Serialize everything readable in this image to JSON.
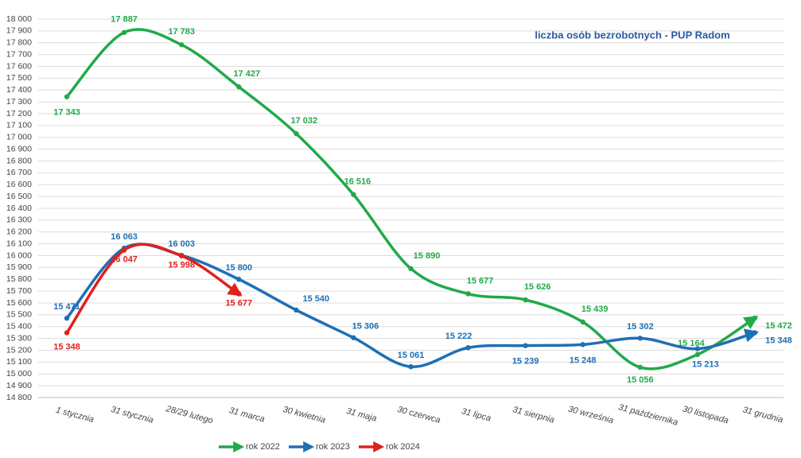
{
  "chart_data": {
    "type": "line",
    "title": "liczba osób bezrobotnych - PUP Radom",
    "categories": [
      "1 stycznia",
      "31 stycznia",
      "28/29 lutego",
      "31 marca",
      "30 kwietnia",
      "31 maja",
      "30 czerwca",
      "31 lipca",
      "31 sierpnia",
      "30 września",
      "31 października",
      "30 listopada",
      "31 grudnia"
    ],
    "series": [
      {
        "name": "rok 2022",
        "color": "#22a94b",
        "values": [
          17343,
          17887,
          17783,
          17427,
          17032,
          16516,
          15890,
          15677,
          15626,
          15439,
          15056,
          15164,
          15472
        ],
        "value_labels": [
          "17 343",
          "17 887",
          "17 783",
          "17 427",
          "17 032",
          "16 516",
          "15 890",
          "15 677",
          "15 626",
          "15 439",
          "15 056",
          "15 164",
          "15 472"
        ]
      },
      {
        "name": "rok 2023",
        "color": "#1f6fb5",
        "values": [
          15471,
          16063,
          16003,
          15800,
          15540,
          15306,
          15061,
          15222,
          15239,
          15248,
          15302,
          15213,
          15348
        ],
        "value_labels": [
          "15 471",
          "16 063",
          "16 003",
          "15 800",
          "15 540",
          "15 306",
          "15 061",
          "15 222",
          "15 239",
          "15 248",
          "15 302",
          "15 213",
          "15 348"
        ]
      },
      {
        "name": "rok 2024",
        "color": "#e0201b",
        "values": [
          15348,
          16047,
          15998,
          15677,
          null,
          null,
          null,
          null,
          null,
          null,
          null,
          null,
          null
        ],
        "value_labels": [
          "15 348",
          "16 047",
          "15 998",
          "15 677",
          null,
          null,
          null,
          null,
          null,
          null,
          null,
          null,
          null
        ]
      }
    ],
    "ylim": [
      14800,
      18000
    ],
    "yticks": [
      {
        "value": 14800,
        "label": "14 800"
      },
      {
        "value": 14900,
        "label": "14 900"
      },
      {
        "value": 15000,
        "label": "15 000"
      },
      {
        "value": 15100,
        "label": "15 100"
      },
      {
        "value": 15200,
        "label": "15 200"
      },
      {
        "value": 15300,
        "label": "15 300"
      },
      {
        "value": 15400,
        "label": "15 400"
      },
      {
        "value": 15500,
        "label": "15 500"
      },
      {
        "value": 15600,
        "label": "15 600"
      },
      {
        "value": 15700,
        "label": "15 700"
      },
      {
        "value": 15800,
        "label": "15 800"
      },
      {
        "value": 15900,
        "label": "15 900"
      },
      {
        "value": 16000,
        "label": "16 000"
      },
      {
        "value": 16100,
        "label": "16 100"
      },
      {
        "value": 16200,
        "label": "16 200"
      },
      {
        "value": 16300,
        "label": "16 300"
      },
      {
        "value": 16400,
        "label": "16 400"
      },
      {
        "value": 16500,
        "label": "16 500"
      },
      {
        "value": 16600,
        "label": "16 600"
      },
      {
        "value": 16700,
        "label": "16 700"
      },
      {
        "value": 16800,
        "label": "16 800"
      },
      {
        "value": 16900,
        "label": "16 900"
      },
      {
        "value": 17000,
        "label": "17 000"
      },
      {
        "value": 17100,
        "label": "17 100"
      },
      {
        "value": 17200,
        "label": "17 200"
      },
      {
        "value": 17300,
        "label": "17 300"
      },
      {
        "value": 17400,
        "label": "17 400"
      },
      {
        "value": 17500,
        "label": "17 500"
      },
      {
        "value": 17600,
        "label": "17 600"
      },
      {
        "value": 17700,
        "label": "17 700"
      },
      {
        "value": 17800,
        "label": "17 800"
      },
      {
        "value": 17900,
        "label": "17 900"
      },
      {
        "value": 18000,
        "label": "18 000"
      }
    ],
    "grid": true,
    "legend": "bottom"
  }
}
